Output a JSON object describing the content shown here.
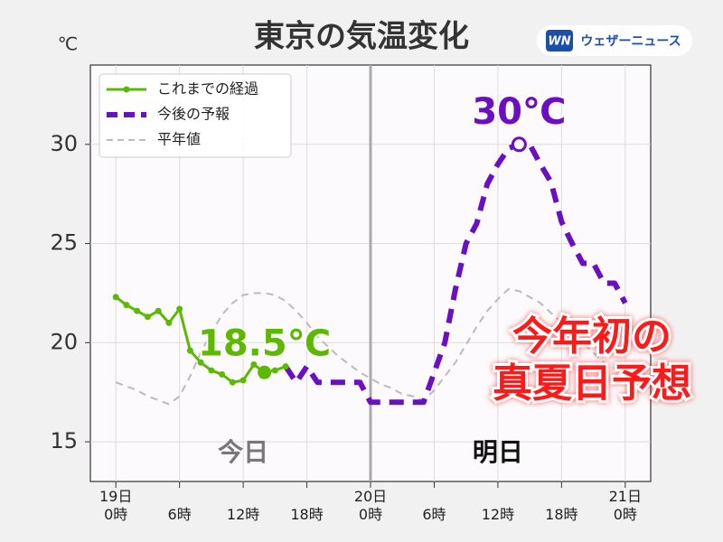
{
  "chart_data": {
    "type": "line",
    "title": "東京の気温変化",
    "y_unit": "℃",
    "logo": {
      "mark": "WN",
      "text": "ウェザーニュース"
    },
    "x": [
      0,
      1,
      2,
      3,
      4,
      5,
      6,
      7,
      8,
      9,
      10,
      11,
      12,
      13,
      14,
      15,
      16,
      17,
      18,
      19,
      20,
      21,
      22,
      23,
      24,
      25,
      26,
      27,
      28,
      29,
      30,
      31,
      32,
      33,
      34,
      35,
      36,
      37,
      38,
      39,
      40,
      41,
      42,
      43,
      44,
      45,
      46,
      47,
      48
    ],
    "series": [
      {
        "name": "これまでの経過",
        "color": "#5cb800",
        "linestyle": "solid",
        "marker": true,
        "values": [
          22.3,
          21.9,
          21.6,
          21.3,
          21.6,
          21.0,
          21.7,
          19.6,
          19.0,
          18.6,
          18.4,
          18.0,
          18.1,
          18.9,
          18.5,
          18.6,
          18.8,
          null,
          null,
          null,
          null,
          null,
          null,
          null,
          null,
          null,
          null,
          null,
          null,
          null,
          null,
          null,
          null,
          null,
          null,
          null,
          null,
          null,
          null,
          null,
          null,
          null,
          null,
          null,
          null,
          null,
          null,
          null,
          null
        ]
      },
      {
        "name": "今後の予報",
        "color": "#6a0fc2",
        "linestyle": "dashed",
        "marker": false,
        "values": [
          null,
          null,
          null,
          null,
          null,
          null,
          null,
          null,
          null,
          null,
          null,
          null,
          null,
          null,
          null,
          null,
          18.8,
          18.0,
          18.8,
          18.0,
          18.0,
          18.0,
          18.0,
          18.0,
          17.0,
          17.0,
          17.0,
          17.0,
          17.0,
          17.0,
          18.5,
          20.0,
          22.7,
          25.0,
          26.0,
          28.0,
          29.0,
          29.8,
          30.0,
          30.0,
          29.0,
          28.1,
          26.1,
          25.0,
          24.0,
          24.0,
          23.0,
          23.0,
          22.0
        ]
      },
      {
        "name": "平年値",
        "color": "#bbbbbb",
        "linestyle": "dashed",
        "marker": false,
        "values": [
          18.0,
          17.8,
          17.6,
          17.3,
          17.1,
          16.9,
          17.3,
          18.3,
          19.5,
          20.5,
          21.4,
          22.0,
          22.4,
          22.5,
          22.5,
          22.4,
          22.1,
          21.6,
          21.0,
          20.3,
          19.8,
          19.3,
          18.9,
          18.5,
          18.2,
          17.9,
          17.7,
          17.4,
          17.3,
          17.1,
          17.6,
          18.3,
          19.0,
          19.9,
          20.8,
          21.6,
          22.2,
          22.7,
          22.6,
          22.3,
          22.0,
          21.5,
          21.0,
          20.5,
          20.0,
          19.5,
          19.0,
          18.7,
          18.4
        ]
      }
    ],
    "xlim": [
      -2.4,
      50.4
    ],
    "ylim": [
      13,
      34
    ],
    "xticks": [
      {
        "value": 0,
        "label": "19日\n0時"
      },
      {
        "value": 6,
        "label": "6時"
      },
      {
        "value": 12,
        "label": "12時"
      },
      {
        "value": 18,
        "label": "18時"
      },
      {
        "value": 24,
        "label": "20日\n0時"
      },
      {
        "value": 30,
        "label": "6時"
      },
      {
        "value": 36,
        "label": "12時"
      },
      {
        "value": 42,
        "label": "18時"
      },
      {
        "value": 48,
        "label": "21日\n0時"
      }
    ],
    "yticks": [
      15,
      20,
      25,
      30
    ],
    "grid": true,
    "legend": "upper left",
    "divider_x": 24,
    "day_labels": [
      {
        "text": "今日",
        "x": 12,
        "color": "#777777"
      },
      {
        "text": "明日",
        "x": 36,
        "color": "#111111"
      }
    ],
    "annotations": [
      {
        "text": "18.5℃",
        "x": 14,
        "y": 18.5,
        "color": "#5cb800",
        "point": "filled"
      },
      {
        "text": "30℃",
        "x": 38,
        "y": 30,
        "color": "#6a0fc2",
        "point": "open"
      }
    ],
    "callout": [
      "今年初の",
      "真夏日予想"
    ]
  }
}
